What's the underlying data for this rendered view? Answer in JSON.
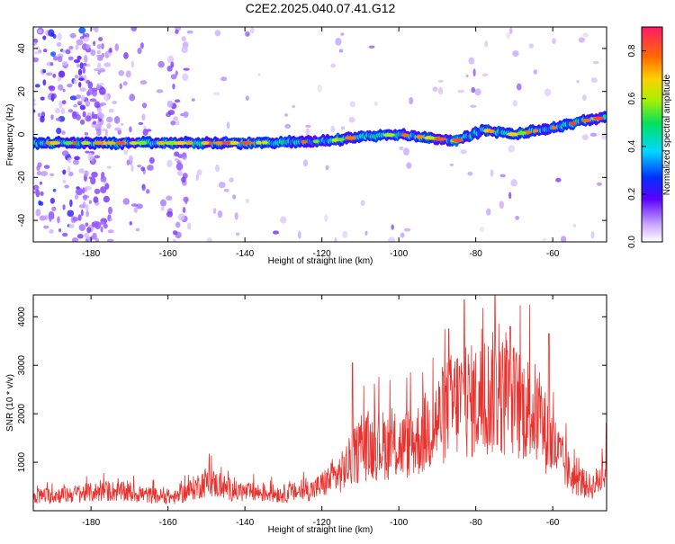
{
  "title": "C2E2.2025.040.07.41.G12",
  "chart_data": [
    {
      "type": "heatmap",
      "xlabel": "Height of straight line (km)",
      "ylabel": "Frequency (Hz)",
      "xlim": [
        -195,
        -46
      ],
      "ylim": [
        -50,
        50
      ],
      "xticks": [
        -180,
        -160,
        -140,
        -120,
        -100,
        -80,
        -60
      ],
      "yticks": [
        -40,
        -20,
        0,
        20,
        40
      ],
      "ridge": [
        {
          "x": -195,
          "y": -4
        },
        {
          "x": -180,
          "y": -4
        },
        {
          "x": -160,
          "y": -4
        },
        {
          "x": -140,
          "y": -4
        },
        {
          "x": -125,
          "y": -3.5
        },
        {
          "x": -118,
          "y": -3
        },
        {
          "x": -110,
          "y": -1
        },
        {
          "x": -100,
          "y": 0
        },
        {
          "x": -90,
          "y": -2
        },
        {
          "x": -85,
          "y": -3
        },
        {
          "x": -78,
          "y": 2
        },
        {
          "x": -70,
          "y": 0
        },
        {
          "x": -60,
          "y": 3
        },
        {
          "x": -50,
          "y": 7
        },
        {
          "x": -46,
          "y": 8
        }
      ],
      "colorbar": {
        "label": "Normalized spectral amplitude",
        "range": [
          0,
          0.9
        ],
        "ticks": [
          0.0,
          0.2,
          0.4,
          0.6,
          0.8
        ]
      }
    },
    {
      "type": "line",
      "xlabel": "Height of straight line (km)",
      "ylabel": "SNR (10 * v/v)",
      "xlim": [
        -195,
        -46
      ],
      "ylim": [
        0,
        4450
      ],
      "xticks": [
        -180,
        -160,
        -140,
        -120,
        -100,
        -80,
        -60
      ],
      "yticks": [
        1000,
        2000,
        3000,
        4000
      ],
      "color": "#e8322e",
      "envelope": [
        {
          "x": -195,
          "y": 300
        },
        {
          "x": -185,
          "y": 350
        },
        {
          "x": -175,
          "y": 420
        },
        {
          "x": -165,
          "y": 330
        },
        {
          "x": -158,
          "y": 280
        },
        {
          "x": -150,
          "y": 620
        },
        {
          "x": -142,
          "y": 400
        },
        {
          "x": -130,
          "y": 360
        },
        {
          "x": -122,
          "y": 450
        },
        {
          "x": -115,
          "y": 800
        },
        {
          "x": -110,
          "y": 1300
        },
        {
          "x": -105,
          "y": 1400
        },
        {
          "x": -100,
          "y": 1350
        },
        {
          "x": -95,
          "y": 1500
        },
        {
          "x": -90,
          "y": 1900
        },
        {
          "x": -85,
          "y": 2300
        },
        {
          "x": -80,
          "y": 2300
        },
        {
          "x": -75,
          "y": 2500
        },
        {
          "x": -70,
          "y": 2300
        },
        {
          "x": -65,
          "y": 2100
        },
        {
          "x": -60,
          "y": 1400
        },
        {
          "x": -55,
          "y": 700
        },
        {
          "x": -50,
          "y": 500
        },
        {
          "x": -46,
          "y": 800
        }
      ],
      "peaks": [
        {
          "x": -112,
          "y": 3050
        },
        {
          "x": -87,
          "y": 3750
        },
        {
          "x": -83,
          "y": 4350
        },
        {
          "x": -75,
          "y": 4450
        },
        {
          "x": -71,
          "y": 3800
        },
        {
          "x": -61,
          "y": 3650
        },
        {
          "x": -46,
          "y": 1800
        }
      ]
    }
  ]
}
